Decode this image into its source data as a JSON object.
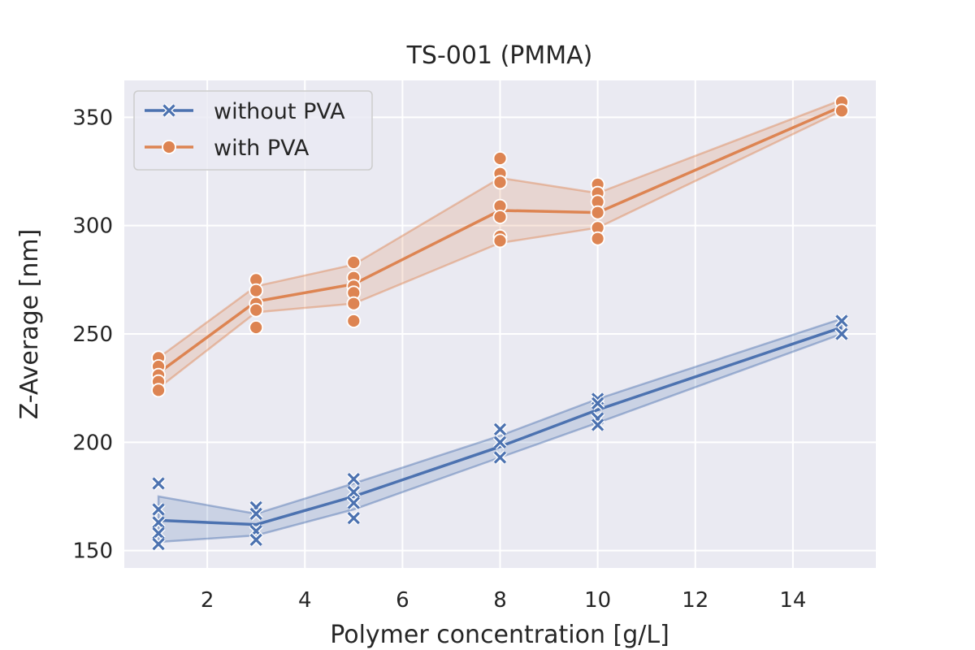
{
  "chart_data": {
    "type": "line",
    "title": "TS-001 (PMMA)",
    "xlabel": "Polymer concentration [g/L]",
    "ylabel": "Z-Average [nm]",
    "xlim": [
      0.3,
      15.7
    ],
    "ylim": [
      142,
      367
    ],
    "xticks": [
      2,
      4,
      6,
      8,
      10,
      12,
      14
    ],
    "yticks": [
      150,
      200,
      250,
      300,
      350
    ],
    "grid": true,
    "legend_position": "top-left",
    "background_color": "#eaeaf2",
    "series": [
      {
        "name": "without PVA",
        "color": "#4c72b0",
        "marker": "x",
        "x": [
          1,
          3,
          5,
          8,
          10,
          15
        ],
        "mean": [
          164,
          162,
          175,
          198,
          215,
          253
        ],
        "ci_low": [
          154,
          157,
          169,
          193,
          209,
          250
        ],
        "ci_high": [
          175,
          167,
          181,
          203,
          220,
          257
        ],
        "points": [
          [
            1,
            181
          ],
          [
            1,
            169
          ],
          [
            1,
            163
          ],
          [
            1,
            158
          ],
          [
            1,
            153
          ],
          [
            3,
            170
          ],
          [
            3,
            167
          ],
          [
            3,
            159
          ],
          [
            3,
            155
          ],
          [
            5,
            183
          ],
          [
            5,
            177
          ],
          [
            5,
            172
          ],
          [
            5,
            165
          ],
          [
            8,
            206
          ],
          [
            8,
            200
          ],
          [
            8,
            193
          ],
          [
            10,
            220
          ],
          [
            10,
            218
          ],
          [
            10,
            211
          ],
          [
            10,
            208
          ],
          [
            15,
            256
          ],
          [
            15,
            250
          ]
        ]
      },
      {
        "name": "with PVA",
        "color": "#dd8452",
        "marker": "o",
        "x": [
          1,
          3,
          5,
          8,
          10,
          15
        ],
        "mean": [
          232,
          265,
          273,
          307,
          306,
          355
        ],
        "ci_low": [
          225,
          260,
          264,
          292,
          299,
          353
        ],
        "ci_high": [
          239,
          272,
          282,
          322,
          315,
          358
        ],
        "points": [
          [
            1,
            239
          ],
          [
            1,
            235
          ],
          [
            1,
            231
          ],
          [
            1,
            228
          ],
          [
            1,
            224
          ],
          [
            3,
            275
          ],
          [
            3,
            270
          ],
          [
            3,
            264
          ],
          [
            3,
            261
          ],
          [
            3,
            253
          ],
          [
            5,
            283
          ],
          [
            5,
            276
          ],
          [
            5,
            272
          ],
          [
            5,
            269
          ],
          [
            5,
            264
          ],
          [
            5,
            256
          ],
          [
            8,
            331
          ],
          [
            8,
            324
          ],
          [
            8,
            320
          ],
          [
            8,
            309
          ],
          [
            8,
            304
          ],
          [
            8,
            295
          ],
          [
            8,
            293
          ],
          [
            10,
            319
          ],
          [
            10,
            315
          ],
          [
            10,
            311
          ],
          [
            10,
            306
          ],
          [
            10,
            299
          ],
          [
            10,
            294
          ],
          [
            15,
            357
          ],
          [
            15,
            353
          ]
        ]
      }
    ]
  }
}
